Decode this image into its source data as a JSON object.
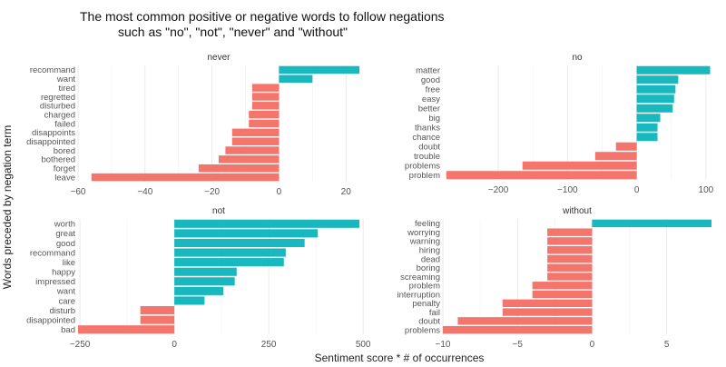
{
  "chart_data": {
    "type": "bar",
    "orientation": "horizontal",
    "title": [
      "The most common positive or negative words to follow negations",
      "such as \"no\", \"not\", \"never\" and \"without\""
    ],
    "xlabel": "Sentiment score * # of occurrences",
    "ylabel": "Words preceded by negation term",
    "colors": {
      "positive": "#19b8bf",
      "negative": "#f4756b"
    },
    "grid": true,
    "legend": "none",
    "panels": [
      {
        "name": "never",
        "xlim": [
          -60,
          24
        ],
        "xticks": [
          -60,
          -40,
          -20,
          0,
          20
        ],
        "categories": [
          "recommand",
          "want",
          "tired",
          "regretted",
          "disturbed",
          "charged",
          "failed",
          "disappoints",
          "disappointed",
          "bored",
          "bothered",
          "forget",
          "leave"
        ],
        "values": [
          24,
          10,
          -8,
          -8,
          -8,
          -9,
          -9,
          -14,
          -14,
          -16,
          -18,
          -24,
          -56
        ]
      },
      {
        "name": "no",
        "xlim": [
          -280,
          108
        ],
        "xticks": [
          -200,
          -100,
          0,
          100
        ],
        "categories": [
          "matter",
          "good",
          "free",
          "easy",
          "better",
          "big",
          "thanks",
          "chance",
          "doubt",
          "trouble",
          "problems",
          "problem"
        ],
        "values": [
          106,
          60,
          56,
          54,
          52,
          34,
          30,
          30,
          -30,
          -60,
          -165,
          -275
        ]
      },
      {
        "name": "not",
        "xlim": [
          -255,
          490
        ],
        "xticks": [
          -250,
          0,
          250,
          500
        ],
        "categories": [
          "worth",
          "great",
          "good",
          "recommand",
          "like",
          "happy",
          "impressed",
          "want",
          "care",
          "disturb",
          "disappointed",
          "bad"
        ],
        "values": [
          490,
          380,
          345,
          295,
          290,
          165,
          160,
          130,
          80,
          -90,
          -90,
          -255
        ]
      },
      {
        "name": "without",
        "xlim": [
          -10,
          8
        ]
      }
    ],
    "without_data": {
      "xticks": [
        -10,
        -5,
        0,
        5
      ],
      "categories": [
        "feeling",
        "worrying",
        "warning",
        "hiring",
        "dead",
        "boring",
        "screaming",
        "problem",
        "interruption",
        "penalty",
        "fail",
        "doubt",
        "problems"
      ],
      "values": [
        8,
        -3,
        -3,
        -3,
        -3,
        -3,
        -3,
        -4,
        -4,
        -6,
        -6,
        -9,
        -10
      ]
    }
  }
}
